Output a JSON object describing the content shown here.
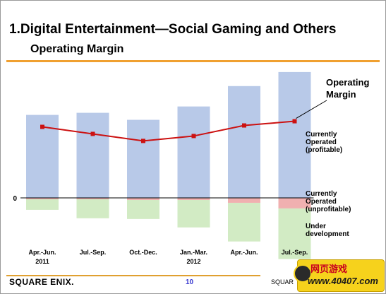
{
  "header": {
    "title": "1.Digital Entertainment―Social Gaming and Others",
    "subtitle": "Operating Margin"
  },
  "footer": {
    "logo_text": "SQUARE ENIX.",
    "page_number": "10",
    "right_text": "SQUAR"
  },
  "watermark": {
    "line1": "网页游戏",
    "line2": "www.40407.com",
    "mascot_icon": "mascot-icon"
  },
  "colors": {
    "profitable": "#b8c9e8",
    "unprofitable": "#f0b0b0",
    "under_development": "#d2ebc4",
    "margin_line": "#cc1111",
    "accent": "#f0a030"
  },
  "chart_data": {
    "type": "bar",
    "categories": [
      [
        "Apr.-Jun.",
        "2011"
      ],
      [
        "Jul.-Sep.",
        ""
      ],
      [
        "Oct.-Dec.",
        ""
      ],
      [
        "Jan.-Mar.",
        "2012"
      ],
      [
        "Apr.-Jun.",
        ""
      ],
      [
        "Jul.-Sep.",
        ""
      ]
    ],
    "zero_label": "0",
    "stacked": true,
    "series": [
      {
        "name": "Currently Operated (profitable)",
        "label_lines": [
          "Currently",
          "Operated",
          "(profitable)"
        ],
        "values": [
          118,
          121,
          111,
          130,
          159,
          179
        ]
      },
      {
        "name": "Currently Operated (unprofitable)",
        "label_lines": [
          "Currently",
          "Operated",
          "(unprofitable)"
        ],
        "values": [
          -2,
          -2,
          -3,
          -3,
          -7,
          -15
        ]
      },
      {
        "name": "Under development",
        "label_lines": [
          "Under",
          "development"
        ],
        "values": [
          -15,
          -27,
          -27,
          -39,
          -55,
          -72
        ]
      }
    ],
    "line": {
      "name": "Operating Margin",
      "label_lines": [
        "Operating",
        "Margin"
      ],
      "values": [
        101,
        91,
        81,
        88,
        103,
        109
      ]
    },
    "ylim": [
      -75,
      180
    ]
  }
}
